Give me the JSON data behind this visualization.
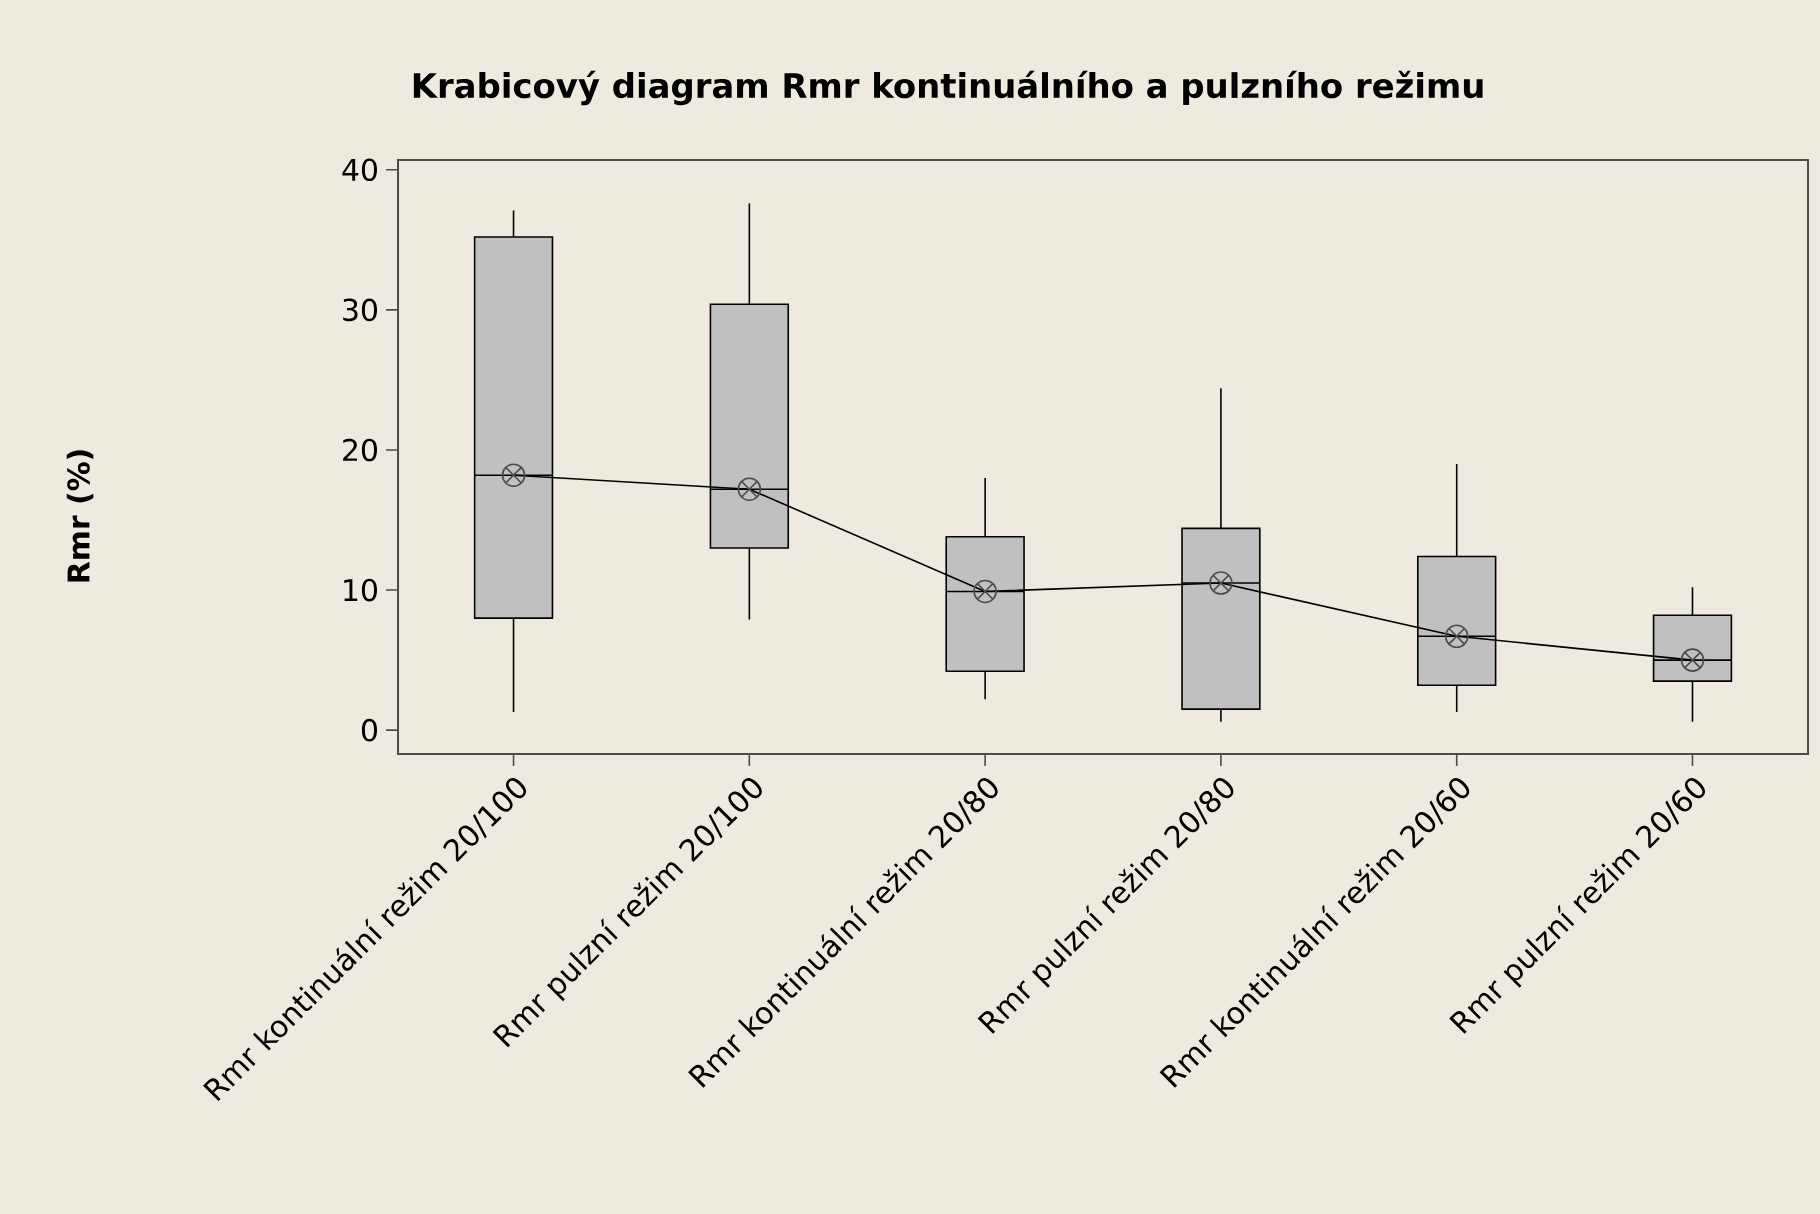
{
  "chart_data": {
    "type": "box",
    "title": "Krabicový diagram Rmr kontinuálního a pulzního režimu",
    "ylabel": "Rmr (%)",
    "categories": [
      "Rmr kontinuální režim 20/100",
      "Rmr pulzní režim 20/100",
      "Rmr kontinuální režim 20/80",
      "Rmr pulzní režim 20/80",
      "Rmr kontinuální režim 20/60",
      "Rmr pulzní režim 20/60"
    ],
    "color": "#c0c0c0",
    "boxes": [
      {
        "low": 1.3,
        "q1": 8.0,
        "median": 18.2,
        "q3": 35.2,
        "high": 37.1,
        "mean": 18.2
      },
      {
        "low": 7.9,
        "q1": 13.0,
        "median": 17.2,
        "q3": 30.4,
        "high": 37.6,
        "mean": 17.2
      },
      {
        "low": 2.2,
        "q1": 4.2,
        "median": 9.9,
        "q3": 13.8,
        "high": 18.0,
        "mean": 9.9
      },
      {
        "low": 0.6,
        "q1": 1.5,
        "median": 10.5,
        "q3": 14.4,
        "high": 24.4,
        "mean": 10.5
      },
      {
        "low": 1.3,
        "q1": 3.2,
        "median": 6.7,
        "q3": 12.4,
        "high": 19.0,
        "mean": 6.7
      },
      {
        "low": 0.6,
        "q1": 3.5,
        "median": 5.0,
        "q3": 8.2,
        "high": 10.2,
        "mean": 5.0
      }
    ],
    "series": [
      {
        "type": "line",
        "color": "#000000",
        "values": [
          18.2,
          17.2,
          9.9,
          10.5,
          6.7,
          5.0
        ]
      }
    ],
    "ylim": [
      -1.7,
      40.7
    ],
    "yticks": [
      0,
      10,
      20,
      30,
      40
    ]
  }
}
